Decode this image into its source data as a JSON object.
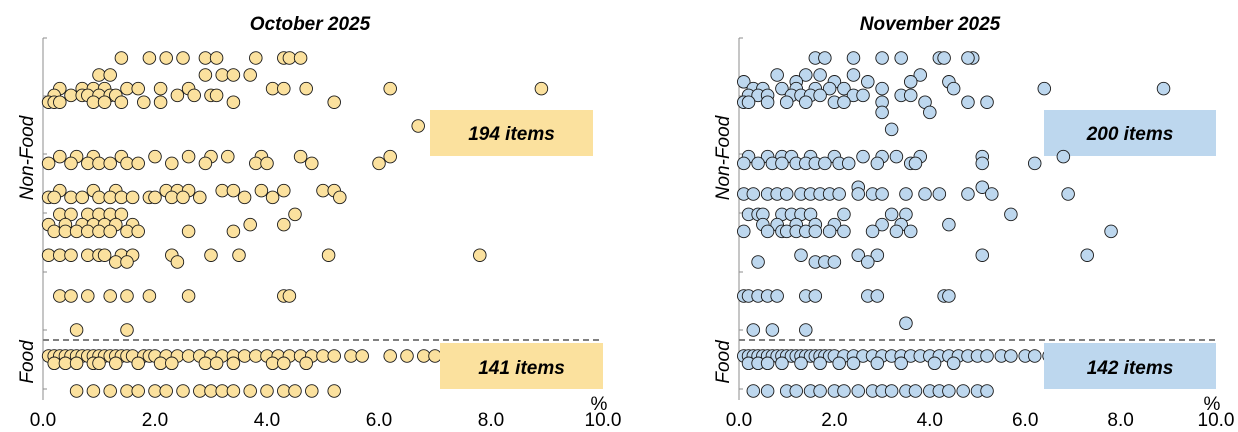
{
  "chart_data": [
    {
      "type": "scatter",
      "title": "October 2025",
      "xlim": [
        0,
        10
      ],
      "xticks": [
        "0.0",
        "2.0",
        "4.0",
        "6.0",
        "8.0",
        "10.0"
      ],
      "x_unit": "%",
      "y_categories": [
        "Food",
        "Non-Food"
      ],
      "point_color": "#fbe19e",
      "box_color": "#fbe19e",
      "grid": false,
      "annotations": {
        "non_food": "194 items",
        "food": "141 items"
      },
      "rows": [
        {
          "group": "Non-Food",
          "y": 10,
          "x": [
            1.4,
            1.9,
            2.2,
            2.5,
            2.9,
            3.1,
            3.8,
            4.3,
            4.4,
            4.6
          ]
        },
        {
          "group": "Non-Food",
          "y": 9.5,
          "x": [
            1.0,
            1.2,
            2.9,
            3.2,
            3.4,
            3.7
          ]
        },
        {
          "group": "Non-Food",
          "y": 9.1,
          "x": [
            0.3,
            0.7,
            0.9,
            1.1,
            1.5,
            1.7,
            2.1,
            2.6,
            4.1,
            4.3,
            4.7,
            6.2,
            8.9
          ]
        },
        {
          "group": "Non-Food",
          "y": 8.9,
          "x": [
            0.2,
            0.5,
            0.7,
            0.8,
            1.0,
            1.2,
            1.3,
            2.4,
            2.7,
            3.0,
            3.1
          ]
        },
        {
          "group": "Non-Food",
          "y": 8.7,
          "x": [
            0.1,
            0.2,
            0.3,
            0.9,
            1.1,
            1.4,
            1.8,
            2.1,
            3.4,
            5.2
          ]
        },
        {
          "group": "Non-Food",
          "y": 8.0,
          "x": [
            6.7
          ]
        },
        {
          "group": "Non-Food",
          "y": 7.1,
          "x": [
            0.3,
            0.6,
            0.9,
            1.4,
            2.0,
            2.6,
            3.0,
            3.3,
            3.9,
            4.6,
            6.2
          ]
        },
        {
          "group": "Non-Food",
          "y": 6.9,
          "x": [
            0.1,
            0.5,
            0.8,
            1.0,
            1.2,
            1.5,
            1.7,
            2.3,
            2.9,
            3.8,
            4.0,
            4.8,
            6.0
          ]
        },
        {
          "group": "Non-Food",
          "y": 6.1,
          "x": [
            0.3,
            0.9,
            1.3,
            2.2,
            2.4,
            2.6,
            3.2,
            3.4,
            3.9,
            4.3,
            5.0,
            5.2
          ]
        },
        {
          "group": "Non-Food",
          "y": 5.9,
          "x": [
            0.1,
            0.2,
            0.5,
            0.7,
            1.0,
            1.2,
            1.4,
            1.6,
            1.9,
            2.0,
            2.3,
            2.5,
            2.8,
            3.6,
            4.1,
            5.3
          ]
        },
        {
          "group": "Non-Food",
          "y": 5.4,
          "x": [
            0.3,
            0.5,
            0.8,
            1.0,
            1.2,
            1.4,
            4.5
          ]
        },
        {
          "group": "Non-Food",
          "y": 5.1,
          "x": [
            0.1,
            0.4,
            0.7,
            0.9,
            1.1,
            1.3,
            1.6,
            3.7,
            4.3
          ]
        },
        {
          "group": "Non-Food",
          "y": 4.9,
          "x": [
            0.2,
            0.4,
            0.6,
            0.8,
            1.0,
            1.2,
            1.5,
            1.7,
            2.6,
            3.4
          ]
        },
        {
          "group": "Non-Food",
          "y": 4.2,
          "x": [
            0.1,
            0.3,
            0.5,
            0.8,
            1.0,
            1.1,
            1.4,
            1.6,
            2.3,
            3.0,
            3.5,
            5.1,
            7.8
          ]
        },
        {
          "group": "Non-Food",
          "y": 4.0,
          "x": [
            1.3,
            1.5,
            2.4
          ]
        },
        {
          "group": "Non-Food",
          "y": 3.0,
          "x": [
            0.3,
            0.5,
            0.8,
            1.2,
            1.5,
            1.9,
            2.6,
            4.3,
            4.4
          ]
        },
        {
          "group": "Non-Food",
          "y": 2.0,
          "x": [
            0.6,
            1.5
          ]
        },
        {
          "group": "Food",
          "y": 0.6,
          "x": [
            0.1,
            0.2,
            0.3,
            0.4,
            0.5,
            0.6,
            0.7,
            0.8,
            0.9,
            1.0,
            1.1,
            1.2,
            1.3,
            1.4,
            1.5,
            1.6,
            1.8,
            1.9,
            2.0,
            2.2,
            2.4,
            2.6,
            2.8,
            3.0,
            3.2,
            3.4,
            3.6,
            3.8,
            4.0,
            4.2,
            4.4,
            4.6,
            4.8,
            5.0,
            5.2,
            5.5,
            5.7,
            6.2,
            6.5,
            6.8,
            7.0,
            7.6
          ]
        },
        {
          "group": "Food",
          "y": 0.35,
          "x": [
            0.2,
            0.4,
            0.6,
            0.9,
            1.0,
            1.3,
            1.7,
            2.1,
            2.3,
            2.9,
            3.1,
            3.4,
            4.1,
            4.3,
            4.7
          ]
        },
        {
          "group": "Food",
          "y": -0.6,
          "x": [
            0.6,
            0.9,
            1.2,
            1.5,
            1.7,
            2.0,
            2.2,
            2.5,
            2.8,
            3.0,
            3.2,
            3.4,
            3.7,
            4.0,
            4.3,
            4.5,
            4.8,
            5.2
          ]
        }
      ]
    },
    {
      "type": "scatter",
      "title": "November 2025",
      "xlim": [
        0,
        10
      ],
      "xticks": [
        "0.0",
        "2.0",
        "4.0",
        "6.0",
        "8.0",
        "10.0"
      ],
      "x_unit": "%",
      "y_categories": [
        "Food",
        "Non-Food"
      ],
      "point_color": "#bdd7ee",
      "box_color": "#bdd7ee",
      "grid": false,
      "annotations": {
        "non_food": "200 items",
        "food": "142 items"
      },
      "rows": [
        {
          "group": "Non-Food",
          "y": 10,
          "x": [
            1.6,
            1.8,
            2.4,
            3.0,
            3.4,
            4.2,
            4.3,
            4.9,
            4.8
          ]
        },
        {
          "group": "Non-Food",
          "y": 9.5,
          "x": [
            0.8,
            1.4,
            1.7,
            2.4,
            3.8
          ]
        },
        {
          "group": "Non-Food",
          "y": 9.3,
          "x": [
            0.1,
            1.2,
            2.0,
            2.7,
            3.6,
            4.4
          ]
        },
        {
          "group": "Non-Food",
          "y": 9.1,
          "x": [
            0.3,
            0.5,
            0.9,
            1.2,
            1.6,
            1.9,
            2.2,
            3.0,
            4.5,
            6.4,
            8.9
          ]
        },
        {
          "group": "Non-Food",
          "y": 8.9,
          "x": [
            0.2,
            0.4,
            0.6,
            1.1,
            1.3,
            1.5,
            1.7,
            2.4,
            2.6,
            3.4,
            3.6
          ]
        },
        {
          "group": "Non-Food",
          "y": 8.7,
          "x": [
            0.1,
            0.2,
            0.6,
            1.0,
            1.4,
            2.0,
            2.2,
            3.0,
            3.9,
            4.8,
            5.2
          ]
        },
        {
          "group": "Non-Food",
          "y": 8.4,
          "x": [
            3.0,
            4.0
          ]
        },
        {
          "group": "Non-Food",
          "y": 7.9,
          "x": [
            3.2
          ]
        },
        {
          "group": "Non-Food",
          "y": 7.1,
          "x": [
            0.2,
            0.6,
            0.9,
            1.1,
            1.5,
            2.0,
            2.6,
            3.0,
            3.3,
            3.8,
            5.1,
            6.8
          ]
        },
        {
          "group": "Non-Food",
          "y": 6.9,
          "x": [
            0.1,
            0.4,
            0.7,
            0.9,
            1.2,
            1.4,
            1.6,
            1.8,
            2.1,
            2.3,
            2.9,
            3.6,
            3.7,
            5.1,
            6.2
          ]
        },
        {
          "group": "Non-Food",
          "y": 6.2,
          "x": [
            2.5,
            5.1
          ]
        },
        {
          "group": "Non-Food",
          "y": 6.0,
          "x": [
            0.1,
            0.3,
            0.6,
            0.8,
            1.0,
            1.3,
            1.5,
            1.7,
            1.9,
            2.1,
            2.5,
            2.8,
            3.0,
            3.5,
            3.9,
            4.2,
            4.8,
            5.3,
            6.9
          ]
        },
        {
          "group": "Non-Food",
          "y": 5.4,
          "x": [
            0.2,
            0.4,
            0.5,
            0.9,
            1.1,
            1.3,
            1.5,
            2.2,
            3.2,
            3.5,
            5.7
          ]
        },
        {
          "group": "Non-Food",
          "y": 5.1,
          "x": [
            0.5,
            0.8,
            1.2,
            1.6,
            2.0,
            3.0,
            3.4,
            4.4
          ]
        },
        {
          "group": "Non-Food",
          "y": 4.9,
          "x": [
            0.1,
            0.6,
            0.9,
            1.0,
            1.2,
            1.4,
            1.6,
            1.9,
            2.2,
            2.8,
            3.3,
            3.6,
            7.8
          ]
        },
        {
          "group": "Non-Food",
          "y": 4.2,
          "x": [
            1.3,
            2.5,
            2.9,
            5.1,
            7.3
          ]
        },
        {
          "group": "Non-Food",
          "y": 4.0,
          "x": [
            0.4,
            1.6,
            1.8,
            2.0,
            2.7
          ]
        },
        {
          "group": "Non-Food",
          "y": 3.0,
          "x": [
            0.1,
            0.2,
            0.4,
            0.6,
            0.8,
            1.4,
            1.6,
            2.7,
            2.9,
            4.3,
            4.4
          ]
        },
        {
          "group": "Non-Food",
          "y": 2.0,
          "x": [
            0.3,
            0.7,
            1.4
          ]
        },
        {
          "group": "Non-Food",
          "y": 2.2,
          "x": [
            3.5
          ]
        },
        {
          "group": "Food",
          "y": 0.6,
          "x": [
            0.1,
            0.2,
            0.3,
            0.4,
            0.5,
            0.6,
            0.7,
            0.8,
            0.9,
            1.0,
            1.1,
            1.2,
            1.3,
            1.4,
            1.5,
            1.6,
            1.7,
            1.8,
            1.9,
            2.0,
            2.2,
            2.4,
            2.6,
            2.8,
            3.0,
            3.2,
            3.4,
            3.6,
            3.8,
            4.0,
            4.2,
            4.4,
            4.6,
            4.8,
            5.0,
            5.2,
            5.5,
            5.7,
            6.0,
            6.2,
            6.5,
            6.8
          ]
        },
        {
          "group": "Food",
          "y": 0.35,
          "x": [
            0.2,
            0.4,
            0.6,
            0.9,
            1.3,
            1.7,
            2.1,
            2.4,
            2.9,
            3.4,
            4.1,
            4.5
          ]
        },
        {
          "group": "Food",
          "y": -0.6,
          "x": [
            0.3,
            0.6,
            1.0,
            1.2,
            1.5,
            1.7,
            2.0,
            2.2,
            2.5,
            2.8,
            3.0,
            3.2,
            3.5,
            3.7,
            4.0,
            4.2,
            4.4,
            4.7,
            5.0,
            5.2
          ]
        }
      ]
    }
  ]
}
